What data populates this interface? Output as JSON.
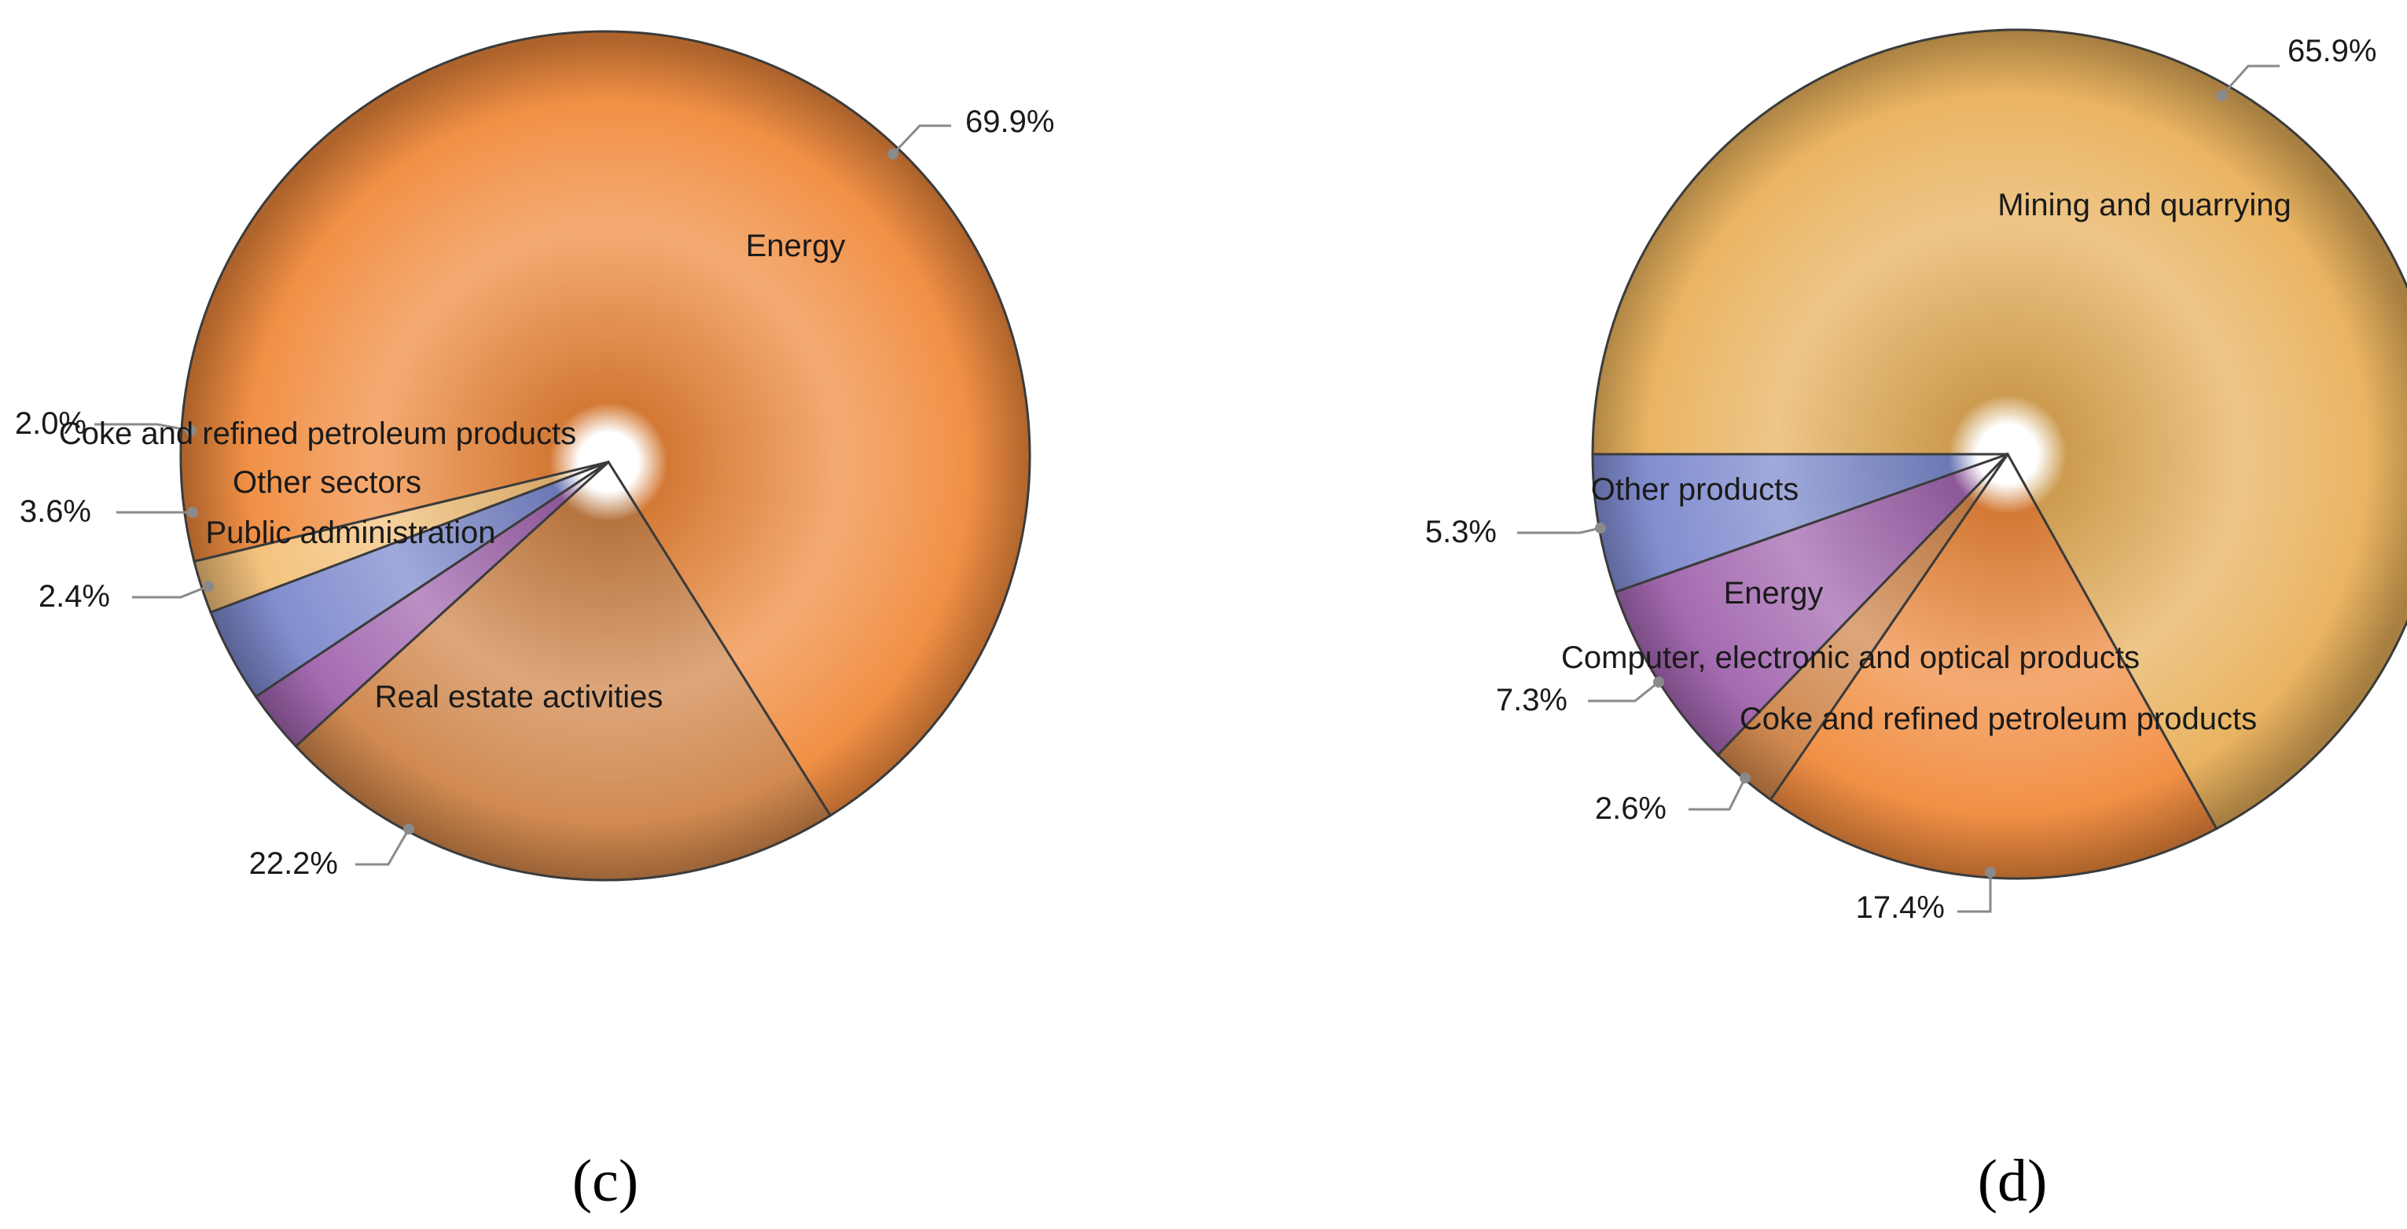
{
  "chart_data": [
    {
      "type": "pie",
      "panel_label": "(c)",
      "slices": [
        {
          "label": "Energy",
          "value": 69.9,
          "pct_label": "69.9%",
          "color": "#f08a3c"
        },
        {
          "label": "Real estate activities",
          "value": 22.2,
          "pct_label": "22.2%",
          "color": "#cf8448"
        },
        {
          "label": "Public administration",
          "value": 2.4,
          "pct_label": "2.4%",
          "color": "#a063ad"
        },
        {
          "label": "Other sectors",
          "value": 3.6,
          "pct_label": "3.6%",
          "color": "#7b88cc"
        },
        {
          "label": "Coke and refined petroleum products",
          "value": 2.0,
          "pct_label": "2.0%",
          "color": "#f3c078"
        }
      ]
    },
    {
      "type": "pie",
      "panel_label": "(d)",
      "slices": [
        {
          "label": "Mining and quarrying",
          "value": 65.9,
          "pct_label": "65.9%",
          "color": "#e8b05a"
        },
        {
          "label": "Coke and refined petroleum products",
          "value": 17.4,
          "pct_label": "17.4%",
          "color": "#f08a3c"
        },
        {
          "label": "Computer, electronic and optical products",
          "value": 2.6,
          "pct_label": "2.6%",
          "color": "#cf8448"
        },
        {
          "label": "Energy",
          "value": 7.3,
          "pct_label": "7.3%",
          "color": "#a063ad"
        },
        {
          "label": "Other products",
          "value": 5.3,
          "pct_label": "5.3%",
          "color": "#7b88cc"
        }
      ]
    }
  ]
}
